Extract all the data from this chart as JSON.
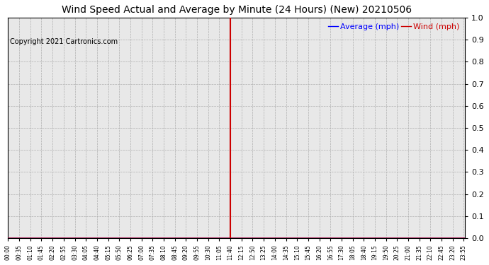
{
  "title": "Wind Speed Actual and Average by Minute (24 Hours) (New) 20210506",
  "copyright": "Copyright 2021 Cartronics.com",
  "legend_avg_label": "Average (mph)",
  "legend_wind_label": "Wind (mph)",
  "legend_avg_color": "#0000ff",
  "legend_wind_color": "#cc0000",
  "ylim": [
    0.0,
    1.0
  ],
  "yticks": [
    0.0,
    0.1,
    0.2,
    0.3,
    0.4,
    0.5,
    0.6,
    0.7,
    0.8,
    0.9,
    1.0
  ],
  "vertical_line_minute": 700,
  "total_minutes": 1440,
  "plot_bg_color": "#e8e8e8",
  "fig_bg_color": "#ffffff",
  "grid_color": "#aaaaaa",
  "title_fontsize": 10,
  "copyright_fontsize": 7,
  "legend_fontsize": 8,
  "xtick_step": 35
}
